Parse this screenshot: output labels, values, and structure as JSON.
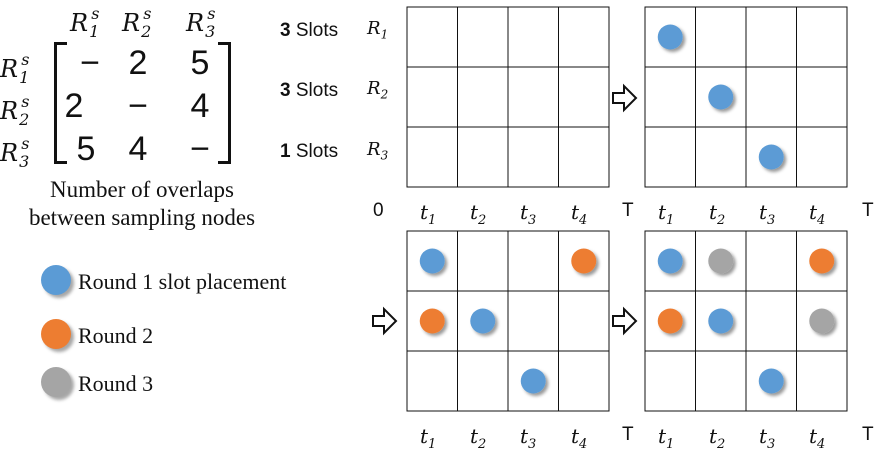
{
  "matrix": {
    "col_headers": [
      {
        "base": "R",
        "sub": "1",
        "sup": "s"
      },
      {
        "base": "R",
        "sub": "2",
        "sup": "s"
      },
      {
        "base": "R",
        "sub": "3",
        "sup": "s"
      }
    ],
    "row_headers": [
      {
        "base": "R",
        "sub": "1",
        "sup": "s"
      },
      {
        "base": "R",
        "sub": "2",
        "sup": "s"
      },
      {
        "base": "R",
        "sub": "3",
        "sup": "s"
      }
    ],
    "cells": [
      [
        "−",
        "2",
        "5"
      ],
      [
        "2",
        "−",
        "4"
      ],
      [
        "5",
        "4",
        "−"
      ]
    ],
    "caption_line1": "Number of overlaps",
    "caption_line2": "between sampling nodes"
  },
  "slots": [
    {
      "count": "3",
      "word": "Slots",
      "resource": {
        "base": "R",
        "sub": "1"
      }
    },
    {
      "count": "3",
      "word": "Slots",
      "resource": {
        "base": "R",
        "sub": "2"
      }
    },
    {
      "count": "1",
      "word": "Slots",
      "resource": {
        "base": "R",
        "sub": "3"
      }
    }
  ],
  "time_axis": {
    "origin": "0",
    "ticks": [
      {
        "base": "t",
        "sub": "1"
      },
      {
        "base": "t",
        "sub": "2"
      },
      {
        "base": "t",
        "sub": "3"
      },
      {
        "base": "t",
        "sub": "4"
      }
    ],
    "end": "T"
  },
  "legend": [
    {
      "label": "Round 1 slot placement",
      "color": "#5b9bd5"
    },
    {
      "label": "Round 2",
      "color": "#ed7d31"
    },
    {
      "label": "Round 3",
      "color": "#a5a5a5"
    }
  ],
  "colors": {
    "round1": "#5b9bd5",
    "round2": "#ed7d31",
    "round3": "#a5a5a5",
    "grid": "#111111"
  },
  "grids": [
    {
      "name": "empty-grid",
      "dots": []
    },
    {
      "name": "grid-round1",
      "dots": [
        {
          "row": 0,
          "col": 0,
          "round": 1
        },
        {
          "row": 1,
          "col": 1,
          "round": 1
        },
        {
          "row": 2,
          "col": 2,
          "round": 1
        }
      ]
    },
    {
      "name": "grid-round2",
      "dots": [
        {
          "row": 0,
          "col": 0,
          "round": 1
        },
        {
          "row": 0,
          "col": 3,
          "round": 2
        },
        {
          "row": 1,
          "col": 0,
          "round": 2
        },
        {
          "row": 1,
          "col": 1,
          "round": 1
        },
        {
          "row": 2,
          "col": 2,
          "round": 1
        }
      ]
    },
    {
      "name": "grid-round3",
      "dots": [
        {
          "row": 0,
          "col": 0,
          "round": 1
        },
        {
          "row": 0,
          "col": 1,
          "round": 3
        },
        {
          "row": 0,
          "col": 3,
          "round": 2
        },
        {
          "row": 1,
          "col": 0,
          "round": 2
        },
        {
          "row": 1,
          "col": 1,
          "round": 1
        },
        {
          "row": 1,
          "col": 3,
          "round": 3
        },
        {
          "row": 2,
          "col": 2,
          "round": 1
        }
      ]
    }
  ],
  "arrows": [
    "arrow-right-icon",
    "arrow-right-icon",
    "arrow-right-icon"
  ]
}
